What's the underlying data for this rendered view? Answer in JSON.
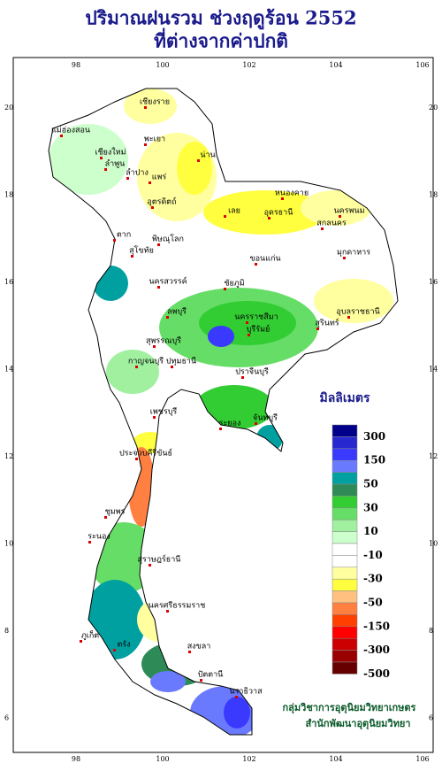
{
  "header": {
    "title": "ปริมาณฝนรวม ช่วงฤดูร้อน 2552",
    "subtitle": "ที่ต่างจากค่าปกติ"
  },
  "map": {
    "lon_labels": [
      "98",
      "100",
      "102",
      "104",
      "106"
    ],
    "lat_labels": [
      "20",
      "18",
      "16",
      "14",
      "12",
      "10",
      "8",
      "6"
    ],
    "provinces": [
      "เชียงราย",
      "แม่ฮ่องสอน",
      "เชียงใหม่",
      "ลำพูน",
      "ลำปาง",
      "พะเยา",
      "น่าน",
      "แพร่",
      "ตาก",
      "อุตรดิตถ์",
      "สุโขทัย",
      "พิษณุโลก",
      "เลย",
      "หนองคาย",
      "อุดรธานี",
      "นครพนม",
      "สกลนคร",
      "มุกดาหาร",
      "ขอนแก่น",
      "ชัยภูมิ",
      "นครสวรรค์",
      "อุบลราชธานี",
      "นครราชสีมา",
      "บุรีรัมย์",
      "สุรินทร์",
      "ลพบุรี",
      "สุพรรณบุรี",
      "กาญจนบุรี",
      "ปทุมธานี",
      "ปราจีนบุรี",
      "ระยอง",
      "จันทบุรี",
      "เพชรบุรี",
      "ประจวบคีรีขันธ์",
      "ชุมพร",
      "ระนอง",
      "สุราษฎร์ธานี",
      "นครศรีธรรมราช",
      "ภูเก็ต",
      "ตรัง",
      "สงขลา",
      "ปัตตานี",
      "นราธิวาส"
    ]
  },
  "legend": {
    "title": "มิลลิเมตร",
    "labels": [
      "300",
      "150",
      "50",
      "30",
      "10",
      "-10",
      "-30",
      "-50",
      "-150",
      "-300",
      "-500"
    ]
  },
  "credit": [
    "กลุ่มวิชาการอุตุนิยมวิทยาเกษตร",
    "สำนักพัฒนาอุตุนิยมวิทยา"
  ]
}
